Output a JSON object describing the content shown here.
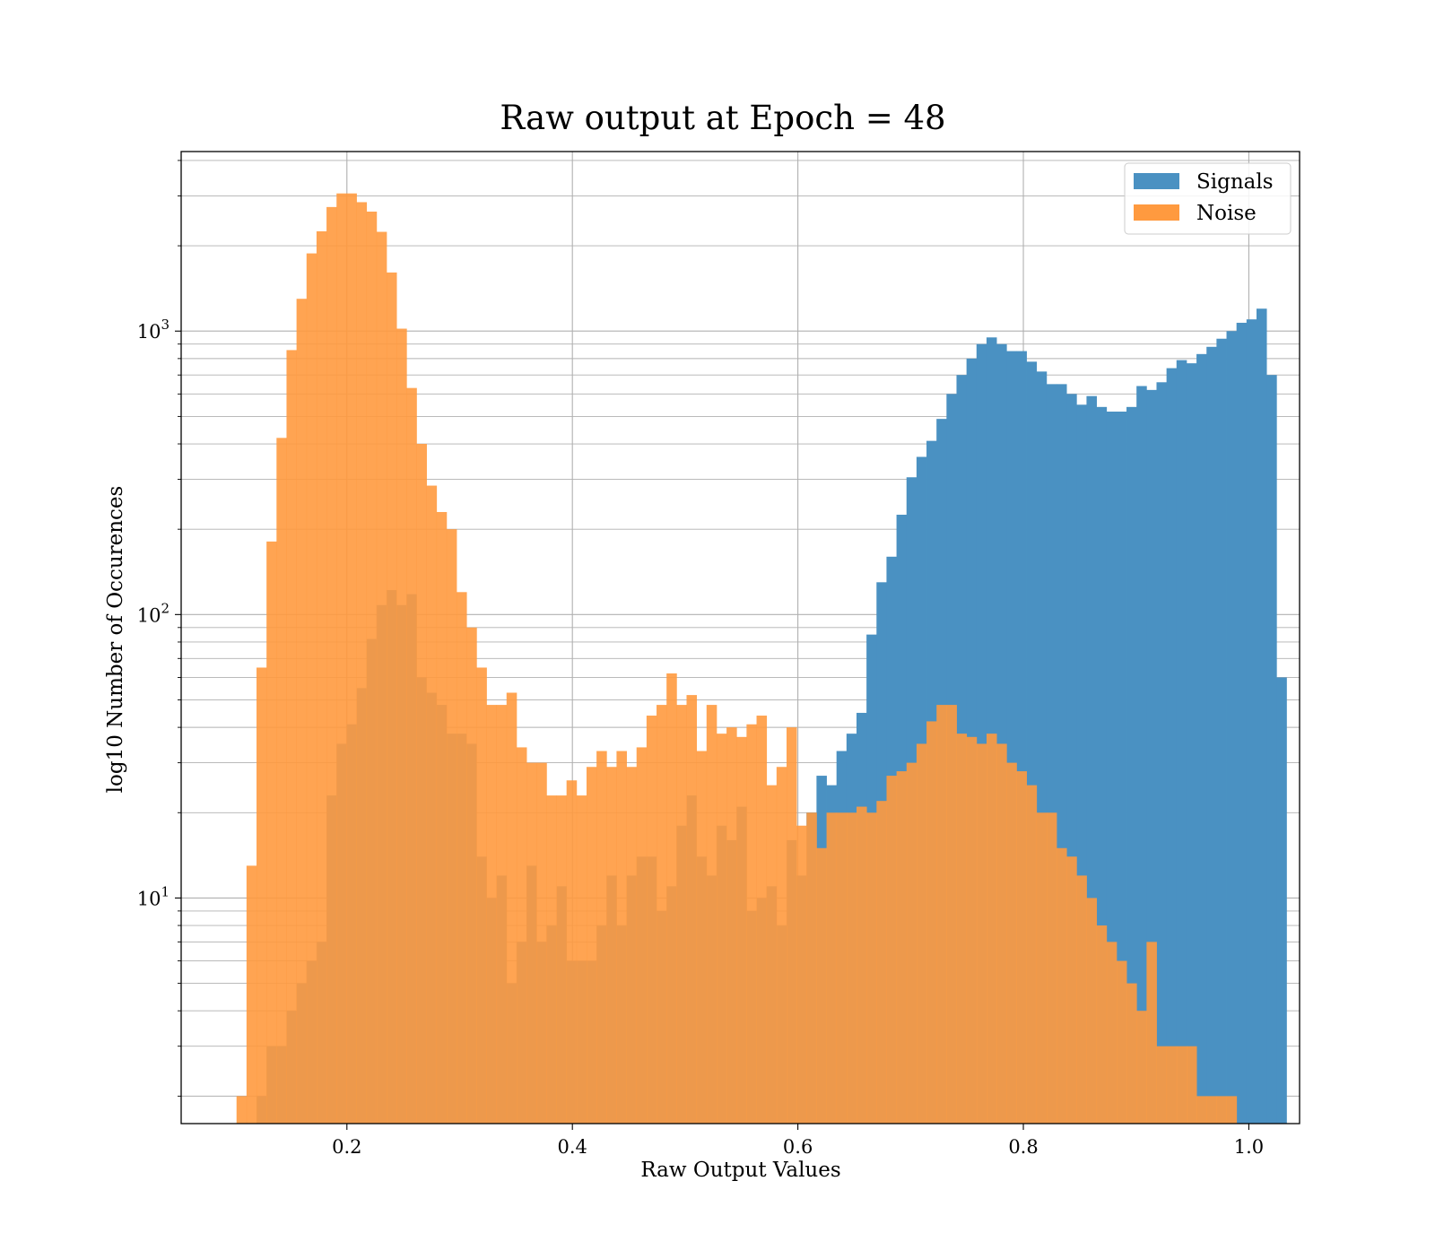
{
  "chart_data": {
    "type": "bar",
    "title": "Raw output at Epoch = 48",
    "xlabel": "Raw Output Values",
    "ylabel": "log10 Number of Occurences",
    "xlim": [
      0.053,
      1.045
    ],
    "ylim": [
      1.6,
      4300
    ],
    "yscale": "log",
    "grid": true,
    "legend": "top-right",
    "x_ticks": [
      "0.2",
      "0.4",
      "0.6",
      "0.8",
      "1.0"
    ],
    "x_tick_values": [
      0.2,
      0.4,
      0.6,
      0.8,
      1.0
    ],
    "y_ticks": [
      {
        "base": "10",
        "exp": "1",
        "value": 10
      },
      {
        "base": "10",
        "exp": "2",
        "value": 100
      },
      {
        "base": "10",
        "exp": "3",
        "value": 1000
      }
    ],
    "bin_width": 0.00887,
    "series": [
      {
        "name": "Signals",
        "color": "#4a91c2",
        "x_start": 0.1198,
        "values": [
          2,
          3,
          3,
          4,
          5,
          6,
          7,
          23,
          35,
          41,
          55,
          82,
          108,
          122,
          108,
          118,
          60,
          53,
          48,
          38,
          38,
          35,
          14,
          10,
          12,
          5,
          7,
          13,
          7,
          8,
          11,
          6,
          6,
          6,
          8,
          12,
          8,
          12,
          14,
          14,
          9,
          11,
          18,
          23,
          14,
          12,
          18,
          16,
          21,
          9,
          10,
          11,
          8,
          16,
          12,
          20,
          27,
          25,
          33,
          38,
          45,
          85,
          130,
          160,
          225,
          305,
          360,
          410,
          490,
          600,
          700,
          800,
          900,
          950,
          900,
          850,
          850,
          780,
          720,
          650,
          650,
          600,
          550,
          590,
          540,
          520,
          520,
          540,
          640,
          620,
          660,
          740,
          790,
          770,
          830,
          880,
          940,
          1000,
          1070,
          1100,
          1200,
          700,
          60
        ]
      },
      {
        "name": "Noise",
        "color": "#ff9a3f",
        "x_start": 0.1021,
        "values": [
          2,
          13,
          65,
          181,
          420,
          857,
          1300,
          1880,
          2250,
          2740,
          3060,
          3060,
          2850,
          2640,
          2240,
          1610,
          1020,
          630,
          400,
          285,
          230,
          200,
          120,
          90,
          65,
          48,
          48,
          53,
          34,
          30,
          30,
          23,
          23,
          26,
          23,
          29,
          33,
          29,
          33,
          29,
          34,
          44,
          48,
          62,
          48,
          52,
          33,
          48,
          38,
          40,
          37,
          41,
          44,
          25,
          29,
          40,
          18,
          20,
          15,
          20,
          20,
          20,
          21,
          20,
          22,
          27,
          28,
          30,
          35,
          42,
          48,
          48,
          38,
          37,
          35,
          38,
          35,
          30,
          28,
          25,
          20,
          20,
          15,
          14,
          12,
          10,
          8,
          7,
          6,
          5,
          4,
          7,
          3,
          3,
          3,
          3,
          2,
          2,
          2,
          2
        ]
      }
    ]
  }
}
